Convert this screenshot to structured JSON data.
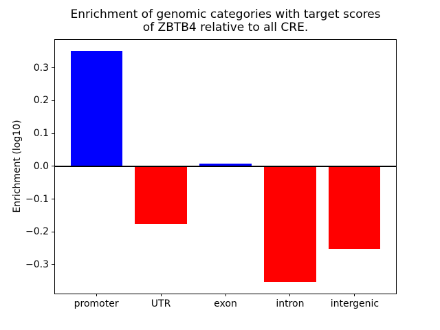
{
  "chart_data": {
    "type": "bar",
    "title": "Enrichment of genomic categories with target scores\nof ZBTB4 relative to all CRE.",
    "ylabel": "Enrichment (log10)",
    "xlabel": "",
    "categories": [
      "promoter",
      "UTR",
      "exon",
      "intron",
      "intergenic"
    ],
    "values": [
      0.352,
      -0.177,
      0.007,
      -0.353,
      -0.252
    ],
    "bar_colors": [
      "#0000ff",
      "#ff0000",
      "#0000ff",
      "#ff0000",
      "#ff0000"
    ],
    "positive_color": "#0000ff",
    "negative_color": "#ff0000",
    "ylim": [
      -0.388,
      0.385
    ],
    "yticks": [
      0.3,
      0.2,
      0.1,
      0.0,
      -0.1,
      -0.2,
      -0.3
    ],
    "ytick_labels": [
      "0.3",
      "0.2",
      "0.1",
      "0.0",
      "−0.1",
      "−0.2",
      "−0.3"
    ],
    "grid": false,
    "legend": null,
    "zero_line_color": "#000000",
    "frame_color": "#000000",
    "background": "#ffffff"
  }
}
